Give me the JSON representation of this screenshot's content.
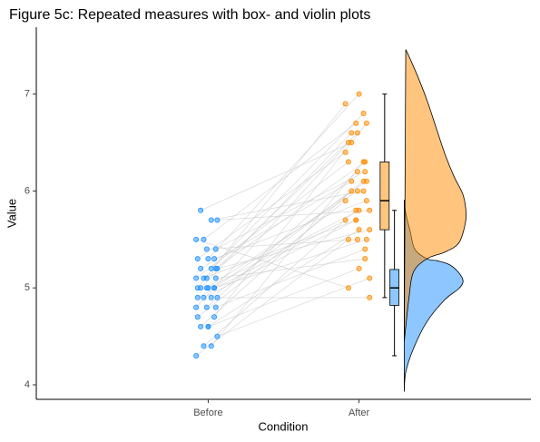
{
  "chart_data": {
    "type": "raincloud",
    "title": "Figure 5c: Repeated measures with box- and violin plots",
    "x_label": "Condition",
    "y_label": "Value",
    "xlim": [
      -0.14,
      3.14
    ],
    "ylim": [
      3.85,
      7.69
    ],
    "xticks": [
      {
        "value": 1,
        "label": "Before"
      },
      {
        "value": 2,
        "label": "After"
      }
    ],
    "yticks": [
      4,
      5,
      6,
      7
    ],
    "line_color": "#c8c8c8",
    "series": [
      {
        "color": "#1e90ff",
        "x": [
          0.92,
          0.97,
          1.02,
          1.06,
          0.95,
          1.0,
          1.04,
          0.93,
          0.99,
          1.05,
          0.92,
          0.97,
          1.02,
          1.06,
          0.95,
          1.0,
          1.04,
          0.93,
          0.99,
          1.05,
          0.92,
          0.97,
          1.02,
          1.06,
          0.95,
          1.0,
          1.04,
          0.93,
          0.99,
          1.05,
          0.92,
          0.97,
          1.02,
          1.06,
          0.95,
          1.0,
          1.04,
          0.93,
          0.99,
          1.05
        ],
        "values": [
          4.3,
          4.4,
          4.4,
          4.5,
          4.6,
          4.6,
          4.7,
          4.7,
          4.8,
          4.8,
          4.8,
          4.9,
          4.9,
          4.9,
          5.0,
          5.0,
          5.0,
          5.0,
          5.0,
          5.1,
          5.1,
          5.1,
          5.2,
          5.2,
          5.2,
          5.3,
          5.3,
          5.3,
          5.4,
          5.4,
          5.5,
          5.5,
          5.7,
          5.7,
          5.8,
          4.6,
          5.0,
          4.9,
          5.1,
          5.2
        ]
      },
      {
        "color": "#ff8c00",
        "x": [
          1.93,
          1.98,
          2.03,
          2.07,
          1.95,
          2.0,
          2.05,
          1.91,
          1.99,
          2.04,
          1.93,
          1.98,
          2.03,
          2.07,
          1.95,
          2.0,
          2.05,
          1.91,
          1.99,
          2.04,
          1.93,
          1.98,
          2.03,
          2.07,
          1.95,
          2.0,
          2.05,
          1.91,
          1.99,
          2.04,
          1.93,
          1.98,
          2.03,
          2.07,
          1.95,
          2.0,
          2.05,
          1.91,
          1.99,
          2.04
        ],
        "values": [
          5.5,
          5.8,
          6.3,
          5.1,
          6.0,
          5.6,
          6.7,
          5.9,
          6.2,
          5.4,
          6.5,
          5.7,
          6.1,
          4.9,
          6.6,
          5.8,
          5.5,
          6.9,
          6.0,
          5.3,
          6.3,
          5.7,
          6.8,
          5.6,
          6.1,
          7.0,
          5.9,
          6.4,
          5.5,
          6.2,
          5.0,
          6.7,
          6.0,
          5.8,
          6.5,
          5.2,
          6.1,
          5.7,
          6.6,
          6.3
        ]
      }
    ],
    "boxes": [
      {
        "color": "#1e90ff",
        "x": 2.235,
        "width": 0.06,
        "min": 4.3,
        "q1": 4.82,
        "median": 5.0,
        "q3": 5.19,
        "max": 5.8
      },
      {
        "color": "#ff8c00",
        "x": 2.17,
        "width": 0.06,
        "min": 4.9,
        "q1": 5.6,
        "median": 5.9,
        "q3": 6.3,
        "max": 7.0
      }
    ],
    "violins": [
      {
        "color": "#1e90ff",
        "x": [
          2.3,
          2.31,
          2.36,
          2.45,
          2.57,
          2.66,
          2.69,
          2.66,
          2.6,
          2.52,
          2.45,
          2.37,
          2.34,
          2.31,
          2.3
        ],
        "y": [
          3.93,
          4.13,
          4.37,
          4.65,
          4.88,
          4.99,
          5.07,
          5.16,
          5.24,
          5.28,
          5.3,
          5.4,
          5.58,
          5.77,
          5.91
        ]
      },
      {
        "color": "#ff8c00",
        "x": [
          2.3,
          2.31,
          2.33,
          2.36,
          2.45,
          2.57,
          2.66,
          2.7,
          2.71,
          2.69,
          2.63,
          2.57,
          2.51,
          2.45,
          2.39,
          2.34,
          2.31
        ],
        "y": [
          4.45,
          4.6,
          4.88,
          5.16,
          5.3,
          5.37,
          5.46,
          5.63,
          5.77,
          5.96,
          6.15,
          6.38,
          6.66,
          6.94,
          7.18,
          7.36,
          7.46
        ]
      }
    ]
  }
}
